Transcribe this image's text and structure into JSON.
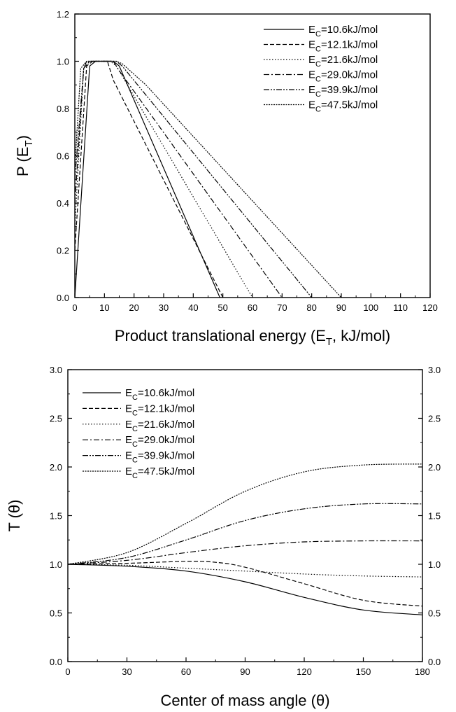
{
  "chart_data": [
    {
      "type": "line",
      "xlabel": "Product translational energy (E",
      "xlabel_sub": "T",
      "xlabel_tail": ", kJ/mol)",
      "ylabel": "P (E",
      "ylabel_sub": "T",
      "ylabel_tail": ")",
      "xlim": [
        0,
        120
      ],
      "ylim": [
        0,
        1.2
      ],
      "xticks": [
        "0",
        "10",
        "20",
        "30",
        "40",
        "50",
        "60",
        "70",
        "80",
        "90",
        "100",
        "110",
        "120"
      ],
      "yticks": [
        "0.0",
        "0.2",
        "0.4",
        "0.6",
        "0.8",
        "1.0",
        "1.2"
      ],
      "legend_position": "top-right",
      "grid": false,
      "series": [
        {
          "name_prefix": "E",
          "name_sub": "C",
          "name_suffix": "=10.6kJ/mol",
          "dash": "",
          "x": [
            0,
            5,
            7,
            13,
            15,
            49
          ],
          "y": [
            0,
            0.98,
            1.0,
            1.0,
            0.98,
            0
          ]
        },
        {
          "name_prefix": "E",
          "name_sub": "C",
          "name_suffix": "=12.1kJ/mol",
          "dash": "6,3",
          "x": [
            0,
            4,
            6,
            11,
            13,
            50
          ],
          "y": [
            0.2,
            0.98,
            1.0,
            1.0,
            0.92,
            0
          ]
        },
        {
          "name_prefix": "E",
          "name_sub": "C",
          "name_suffix": "=21.6kJ/mol",
          "dash": "1.5,2.5",
          "x": [
            0,
            3,
            5,
            12,
            14,
            60
          ],
          "y": [
            0.3,
            0.97,
            1.0,
            1.0,
            0.98,
            0
          ]
        },
        {
          "name_prefix": "E",
          "name_sub": "C",
          "name_suffix": "=29.0kJ/mol",
          "dash": "8,3,2,3",
          "x": [
            0,
            3,
            5,
            13,
            15,
            70
          ],
          "y": [
            0.4,
            0.97,
            1.0,
            1.0,
            0.96,
            0
          ]
        },
        {
          "name_prefix": "E",
          "name_sub": "C",
          "name_suffix": "=39.9kJ/mol",
          "dash": "8,2,2,2,2,2",
          "x": [
            0,
            3,
            4,
            14,
            16,
            80
          ],
          "y": [
            0.5,
            0.97,
            1.0,
            1.0,
            0.98,
            0
          ]
        },
        {
          "name_prefix": "E",
          "name_sub": "C",
          "name_suffix": "=47.5kJ/mol",
          "dash": "2,1.5",
          "x": [
            0,
            2,
            4,
            14,
            16,
            24,
            90
          ],
          "y": [
            0.55,
            0.97,
            1.0,
            1.0,
            0.99,
            0.9,
            0
          ]
        }
      ]
    },
    {
      "type": "line",
      "xlabel": "Center of mass angle (θ)",
      "ylabel": "T (θ)",
      "xlim": [
        0,
        180
      ],
      "ylim": [
        0,
        3.0
      ],
      "xticks": [
        "0",
        "30",
        "60",
        "90",
        "120",
        "150",
        "180"
      ],
      "yticks": [
        "0.0",
        "0.5",
        "1.0",
        "1.5",
        "2.0",
        "2.5",
        "3.0"
      ],
      "legend_position": "top-left",
      "grid": false,
      "series": [
        {
          "name_prefix": "E",
          "name_sub": "C",
          "name_suffix": "=10.6kJ/mol",
          "dash": "",
          "x": [
            0,
            30,
            60,
            90,
            120,
            150,
            180
          ],
          "y": [
            1.0,
            0.98,
            0.93,
            0.82,
            0.66,
            0.53,
            0.48
          ]
        },
        {
          "name_prefix": "E",
          "name_sub": "C",
          "name_suffix": "=12.1kJ/mol",
          "dash": "6,3",
          "x": [
            0,
            30,
            60,
            75,
            90,
            120,
            150,
            180
          ],
          "y": [
            1.0,
            1.01,
            1.03,
            1.02,
            0.97,
            0.8,
            0.63,
            0.57
          ]
        },
        {
          "name_prefix": "E",
          "name_sub": "C",
          "name_suffix": "=21.6kJ/mol",
          "dash": "1.5,2.5",
          "x": [
            0,
            30,
            60,
            90,
            120,
            150,
            180
          ],
          "y": [
            1.0,
            0.99,
            0.96,
            0.93,
            0.9,
            0.88,
            0.87
          ]
        },
        {
          "name_prefix": "E",
          "name_sub": "C",
          "name_suffix": "=29.0kJ/mol",
          "dash": "8,3,2,3",
          "x": [
            0,
            30,
            60,
            90,
            120,
            150,
            180
          ],
          "y": [
            1.0,
            1.04,
            1.12,
            1.19,
            1.23,
            1.24,
            1.24
          ]
        },
        {
          "name_prefix": "E",
          "name_sub": "C",
          "name_suffix": "=39.9kJ/mol",
          "dash": "8,2,2,2,2,2",
          "x": [
            0,
            30,
            60,
            90,
            120,
            150,
            180
          ],
          "y": [
            1.0,
            1.07,
            1.25,
            1.45,
            1.57,
            1.62,
            1.62
          ]
        },
        {
          "name_prefix": "E",
          "name_sub": "C",
          "name_suffix": "=47.5kJ/mol",
          "dash": "2,1.5",
          "x": [
            0,
            30,
            60,
            90,
            120,
            150,
            180
          ],
          "y": [
            1.0,
            1.12,
            1.42,
            1.75,
            1.95,
            2.02,
            2.03
          ]
        }
      ]
    }
  ]
}
